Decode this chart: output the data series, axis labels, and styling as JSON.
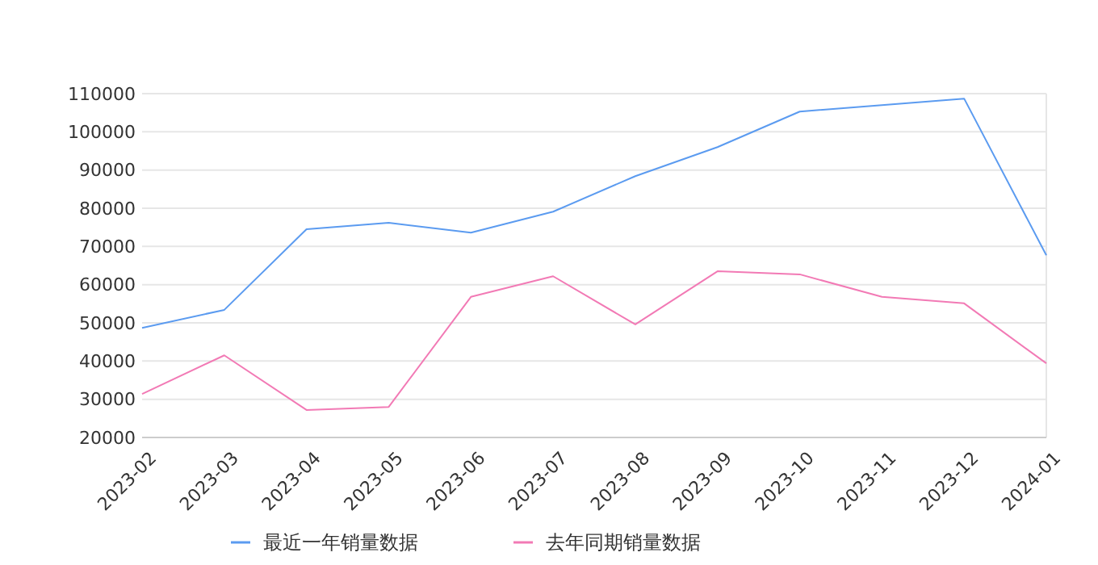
{
  "chart_data": {
    "type": "line",
    "categories": [
      "2023-02",
      "2023-03",
      "2023-04",
      "2023-05",
      "2023-06",
      "2023-07",
      "2023-08",
      "2023-09",
      "2023-10",
      "2023-11",
      "2023-12",
      "2024-01"
    ],
    "series": [
      {
        "name": "最近一年销量数据",
        "color": "#5b9bf0",
        "values": [
          48700,
          53400,
          74500,
          76200,
          73600,
          79100,
          88400,
          96000,
          105300,
          107000,
          108700,
          67700
        ]
      },
      {
        "name": "去年同期销量数据",
        "color": "#f27ab5",
        "values": [
          31400,
          41500,
          27200,
          28000,
          56800,
          62200,
          49600,
          63500,
          62700,
          56800,
          55100,
          39400
        ]
      }
    ],
    "ylim": [
      20000,
      110000
    ],
    "yticks": [
      20000,
      30000,
      40000,
      50000,
      60000,
      70000,
      80000,
      90000,
      100000,
      110000
    ],
    "grid": "y",
    "legend": "bottom",
    "marker": "none",
    "line_style": "solid"
  }
}
